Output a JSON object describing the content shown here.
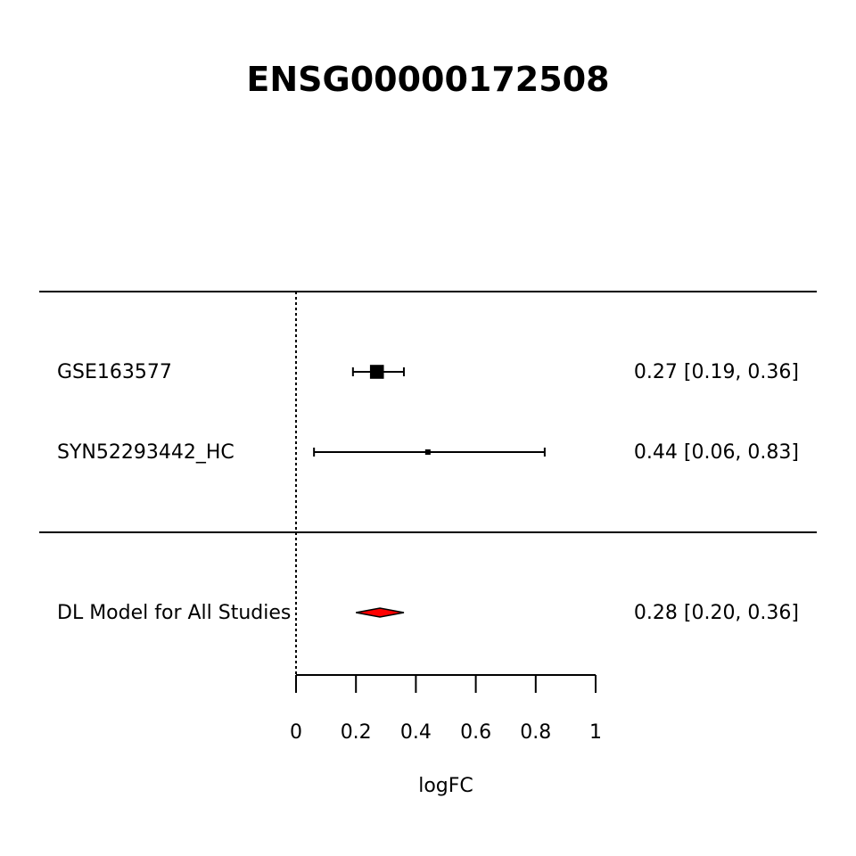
{
  "chart_data": {
    "type": "forest",
    "title": "ENSG00000172508",
    "xlabel": "logFC",
    "xlim": [
      0,
      1
    ],
    "ticks": [
      0,
      0.2,
      0.4,
      0.6,
      0.8,
      1
    ],
    "tick_labels": [
      "0",
      "0.2",
      "0.4",
      "0.6",
      "0.8",
      "1"
    ],
    "reference_line": 0,
    "studies": [
      {
        "label": "GSE163577",
        "estimate": 0.27,
        "lower": 0.19,
        "upper": 0.36,
        "ci_text": "0.27 [0.19, 0.36]",
        "weight": 0.95
      },
      {
        "label": "SYN52293442_HC",
        "estimate": 0.44,
        "lower": 0.06,
        "upper": 0.83,
        "ci_text": "0.44 [0.06, 0.83]",
        "weight": 0.05
      }
    ],
    "summary": {
      "label": "DL Model for All Studies",
      "estimate": 0.28,
      "lower": 0.2,
      "upper": 0.36,
      "ci_text": "0.28 [0.20, 0.36]",
      "color": "#ff0000"
    }
  }
}
